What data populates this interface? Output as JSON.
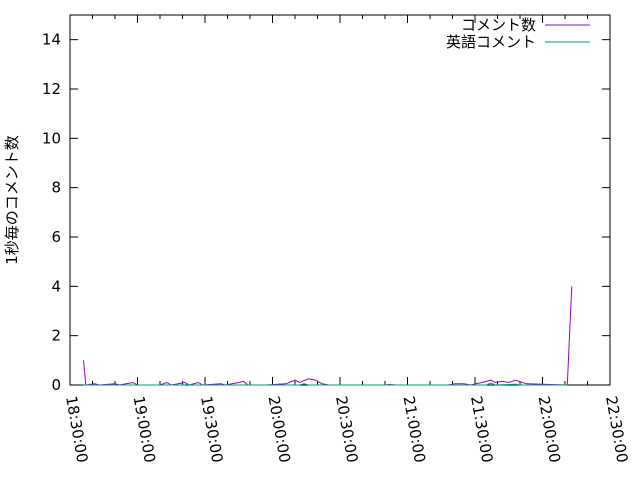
{
  "chart_data": {
    "type": "line",
    "title": "",
    "xlabel": "",
    "ylabel": "1秒毎のコメント数",
    "xlim": [
      "18:30:00",
      "22:30:00"
    ],
    "ylim": [
      0,
      15
    ],
    "x_ticks": [
      "18:30:00",
      "19:00:00",
      "19:30:00",
      "20:00:00",
      "20:30:00",
      "21:00:00",
      "21:30:00",
      "22:00:00",
      "22:30:00"
    ],
    "y_ticks": [
      "0",
      "2",
      "4",
      "6",
      "8",
      "10",
      "12",
      "14"
    ],
    "legend_position": "top-right",
    "grid": false,
    "series": [
      {
        "name": "コメント数",
        "color": "#9400d3",
        "points": [
          [
            "18:36",
            1.0
          ],
          [
            "18:37",
            0
          ],
          [
            "18:41",
            0.05
          ],
          [
            "18:43",
            0
          ],
          [
            "18:50",
            0.05
          ],
          [
            "18:52",
            0
          ],
          [
            "18:58",
            0.1
          ],
          [
            "19:00",
            0
          ],
          [
            "19:10",
            0
          ],
          [
            "19:13",
            0.1
          ],
          [
            "19:15",
            0
          ],
          [
            "19:21",
            0.1
          ],
          [
            "19:23",
            0
          ],
          [
            "19:27",
            0.1
          ],
          [
            "19:29",
            0
          ],
          [
            "19:37",
            0.05
          ],
          [
            "19:39",
            0
          ],
          [
            "19:45",
            0.1
          ],
          [
            "19:47",
            0.15
          ],
          [
            "19:49",
            0
          ],
          [
            "19:57",
            0
          ],
          [
            "20:06",
            0.05
          ],
          [
            "20:10",
            0.2
          ],
          [
            "20:12",
            0.1
          ],
          [
            "20:16",
            0.25
          ],
          [
            "20:19",
            0.2
          ],
          [
            "20:22",
            0.05
          ],
          [
            "20:25",
            0
          ],
          [
            "20:50",
            0
          ],
          [
            "20:52",
            0.02
          ],
          [
            "20:55",
            0
          ],
          [
            "21:18",
            0
          ],
          [
            "21:21",
            0.05
          ],
          [
            "21:25",
            0.05
          ],
          [
            "21:28",
            0
          ],
          [
            "21:33",
            0.1
          ],
          [
            "21:37",
            0.2
          ],
          [
            "21:39",
            0.1
          ],
          [
            "21:42",
            0.15
          ],
          [
            "21:45",
            0.1
          ],
          [
            "21:48",
            0.2
          ],
          [
            "21:51",
            0.1
          ],
          [
            "21:53",
            0.05
          ],
          [
            "22:11",
            0
          ],
          [
            "22:12",
            2.0
          ],
          [
            "22:13",
            4.0
          ]
        ]
      },
      {
        "name": "英語コメント",
        "color": "#009e73",
        "points": [
          [
            "18:36",
            0
          ],
          [
            "19:21",
            0
          ],
          [
            "19:22",
            0.03
          ],
          [
            "19:23",
            0
          ],
          [
            "20:12",
            0
          ],
          [
            "20:14",
            0.05
          ],
          [
            "20:16",
            0
          ],
          [
            "21:35",
            0
          ],
          [
            "21:37",
            0.08
          ],
          [
            "21:39",
            0
          ],
          [
            "21:48",
            0.03
          ],
          [
            "21:50",
            0
          ],
          [
            "22:11",
            0
          ]
        ]
      }
    ]
  }
}
